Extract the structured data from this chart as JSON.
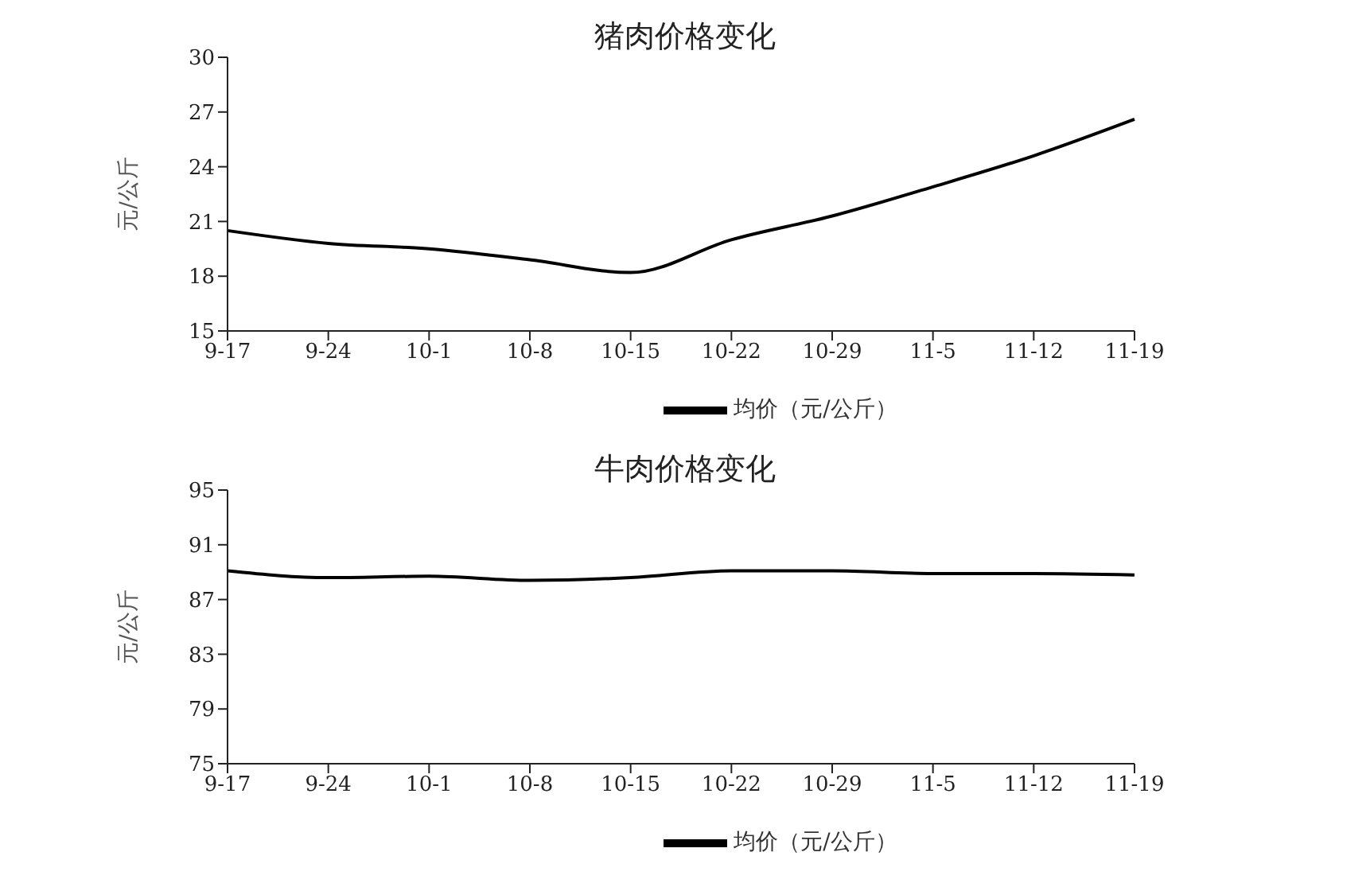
{
  "chart_data": [
    {
      "type": "line",
      "title": "猪肉价格变化",
      "ylabel": "元/公斤",
      "categories": [
        "9-17",
        "9-24",
        "10-1",
        "10-8",
        "10-15",
        "10-22",
        "10-29",
        "11-5",
        "11-12",
        "11-19"
      ],
      "series": [
        {
          "name": "均价（元/公斤）",
          "color": "#000000",
          "values": [
            20.5,
            19.8,
            19.5,
            18.9,
            18.2,
            20.0,
            21.3,
            22.9,
            24.6,
            26.6
          ]
        }
      ],
      "ylim": [
        15,
        30
      ],
      "yticks": [
        15,
        18,
        21,
        24,
        27,
        30
      ],
      "grid": false,
      "legend": "bottom",
      "marker": "none",
      "line_style": "solid"
    },
    {
      "type": "line",
      "title": "牛肉价格变化",
      "ylabel": "元/公斤",
      "categories": [
        "9-17",
        "9-24",
        "10-1",
        "10-8",
        "10-15",
        "10-22",
        "10-29",
        "11-5",
        "11-12",
        "11-19"
      ],
      "series": [
        {
          "name": "均价（元/公斤）",
          "color": "#000000",
          "values": [
            89.1,
            88.6,
            88.7,
            88.4,
            88.6,
            89.1,
            89.1,
            88.9,
            88.9,
            88.8
          ]
        }
      ],
      "ylim": [
        75,
        95
      ],
      "yticks": [
        75,
        79,
        83,
        87,
        91,
        95
      ],
      "grid": false,
      "legend": "bottom",
      "marker": "none",
      "line_style": "solid"
    }
  ]
}
